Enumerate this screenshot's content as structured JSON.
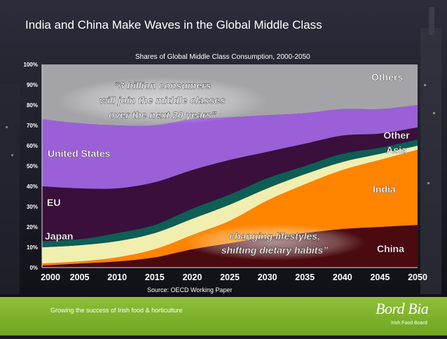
{
  "slide": {
    "title": "India and China Make Waves in the Global Middle Class",
    "source": "Source: OECD Working Paper",
    "footer_text": "Growing the success of Irish food & horticulture",
    "logo_main": "Bord Bia",
    "logo_sub": "Irish Food Board",
    "accent_green": "#7cb32a"
  },
  "chart_data": {
    "type": "area",
    "stacking": "percent",
    "title": "Shares of Global Middle Class Consumption, 2000-2050",
    "xlabel": "",
    "ylabel": "",
    "x": [
      2000,
      2005,
      2010,
      2015,
      2020,
      2025,
      2030,
      2035,
      2040,
      2045,
      2050
    ],
    "x_tick_labels": [
      "2000",
      "2005",
      "2010",
      "2015",
      "2020",
      "2025",
      "2030",
      "2035",
      "2040",
      "2045",
      "2050"
    ],
    "y_tick_labels": [
      "0%",
      "10%",
      "20%",
      "30%",
      "40%",
      "50%",
      "60%",
      "70%",
      "80%",
      "90%",
      "100%"
    ],
    "ylim": [
      0,
      100
    ],
    "series": [
      {
        "name": "China",
        "color": "#4a0a0f",
        "values": [
          1,
          2,
          3,
          5,
          9,
          12,
          15,
          17,
          19,
          20,
          21
        ]
      },
      {
        "name": "India",
        "color": "#ff8400",
        "values": [
          1,
          1,
          2,
          4,
          7,
          11,
          18,
          24,
          29,
          33,
          37
        ]
      },
      {
        "name": "Japan",
        "color": "#f0efb0",
        "values": [
          8,
          8,
          8,
          8,
          8,
          8,
          6,
          5,
          4,
          3,
          2
        ]
      },
      {
        "name": "Other Asia",
        "color": "#0d5e55",
        "values": [
          3,
          3,
          4,
          4,
          5,
          5,
          5,
          4,
          4,
          3,
          3
        ]
      },
      {
        "name": "EU",
        "color": "#3a0f3c",
        "values": [
          27,
          25,
          22,
          21,
          19,
          17,
          13,
          11,
          9,
          7,
          6
        ]
      },
      {
        "name": "United States",
        "color": "#9b5fd8",
        "values": [
          33,
          32,
          31,
          28,
          25,
          21,
          18,
          15,
          13,
          12,
          11
        ]
      },
      {
        "name": "Others",
        "color": "#a4a4a8",
        "values": [
          27,
          29,
          30,
          30,
          27,
          26,
          25,
          24,
          22,
          22,
          20
        ]
      }
    ],
    "labels": {
      "others": "Others",
      "other_asia_line1": "Other",
      "other_asia_line2": "Asia",
      "united_states": "United States",
      "eu": "EU",
      "japan": "Japan",
      "india": "India",
      "china": "China"
    },
    "annotations": {
      "quote1_line1": "“3 billion consumers",
      "quote1_line2": "will join the middle classes",
      "quote1_line3": "over the next 20 years”",
      "quote2_line1": "changing lifestyles,",
      "quote2_line2": "shifting dietary habits”"
    }
  }
}
